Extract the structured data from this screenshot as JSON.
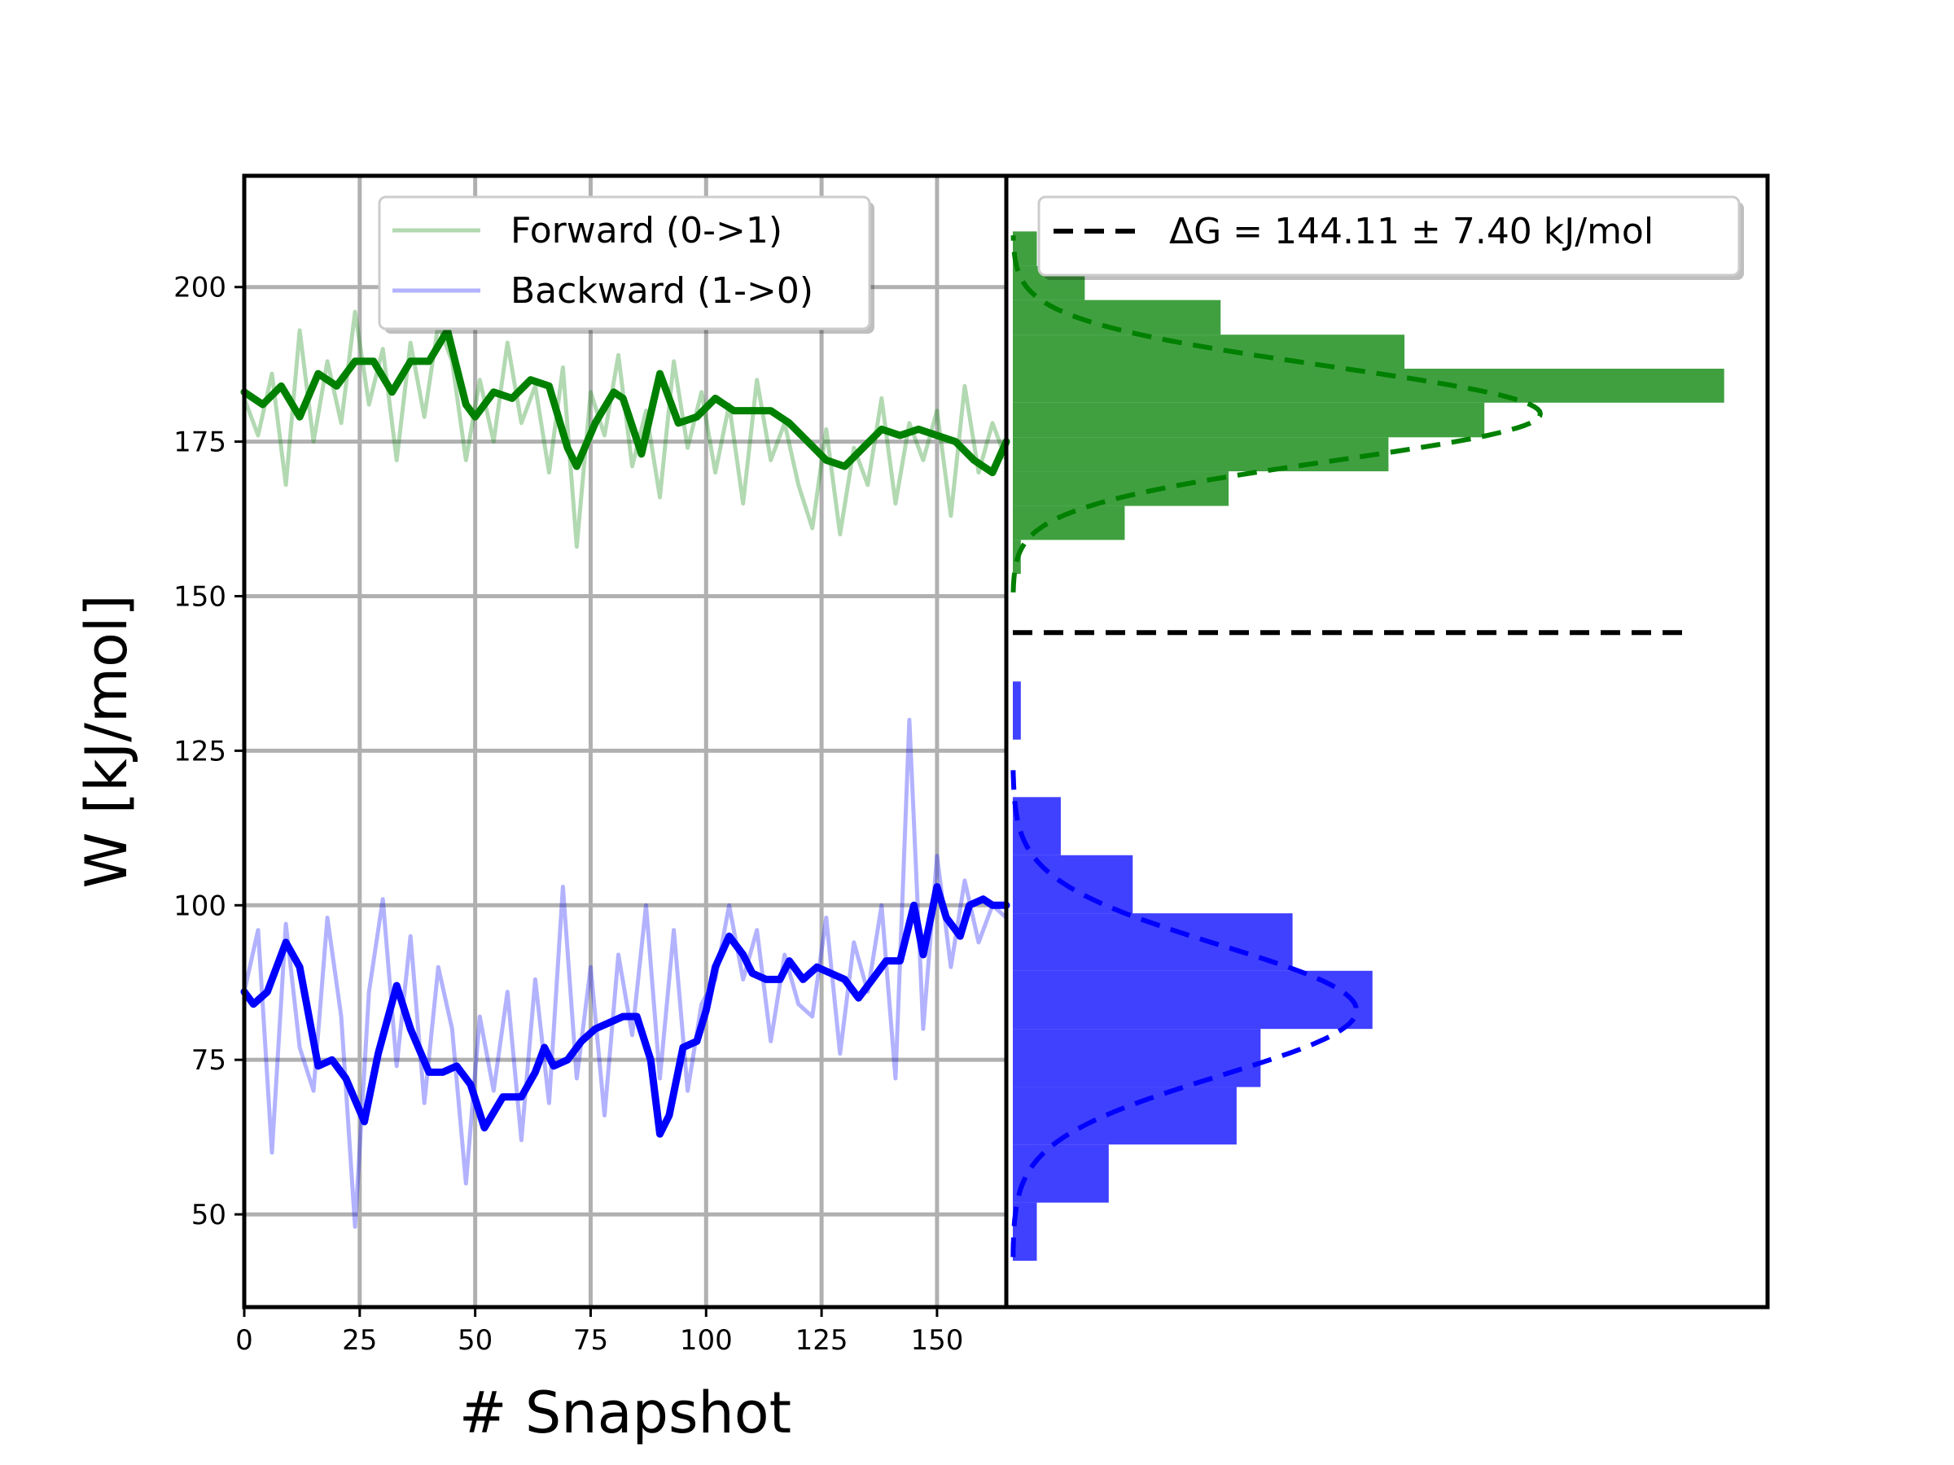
{
  "figure": {
    "background": "#ffffff"
  },
  "chart_data": [
    {
      "type": "line",
      "panel": "left",
      "xlabel": "# Snapshot",
      "ylabel": "W [kJ/mol]",
      "xlim": [
        0,
        165
      ],
      "ylim": [
        35,
        218
      ],
      "xticks": [
        0,
        25,
        50,
        75,
        100,
        125,
        150
      ],
      "yticks": [
        50,
        75,
        100,
        125,
        150,
        175,
        200
      ],
      "grid": true,
      "legend": {
        "placement": "top-center",
        "entries": [
          "Forward (0->1)",
          "Backward (1->0)"
        ]
      },
      "series": [
        {
          "name": "Forward (0->1)",
          "role": "raw",
          "color": "#008000",
          "opacity": 0.3,
          "x": [
            0,
            3,
            6,
            9,
            12,
            15,
            18,
            21,
            24,
            27,
            30,
            33,
            36,
            39,
            42,
            45,
            48,
            51,
            54,
            57,
            60,
            63,
            66,
            69,
            72,
            75,
            78,
            81,
            84,
            87,
            90,
            93,
            96,
            99,
            102,
            105,
            108,
            111,
            114,
            117,
            120,
            123,
            126,
            129,
            132,
            135,
            138,
            141,
            144,
            147,
            150,
            153,
            156,
            159,
            162,
            165
          ],
          "y": [
            182,
            176,
            186,
            168,
            193,
            175,
            188,
            178,
            196,
            181,
            190,
            172,
            191,
            179,
            194,
            188,
            172,
            185,
            175,
            191,
            178,
            184,
            170,
            187,
            158,
            183,
            176,
            189,
            171,
            180,
            166,
            188,
            174,
            183,
            170,
            181,
            165,
            185,
            172,
            178,
            168,
            161,
            177,
            160,
            174,
            168,
            182,
            165,
            178,
            172,
            180,
            163,
            184,
            170,
            178,
            172
          ]
        },
        {
          "name": "Forward (0->1)",
          "role": "smoothed",
          "color": "#008000",
          "x": [
            0,
            4,
            8,
            12,
            16,
            20,
            24,
            28,
            32,
            36,
            40,
            44,
            46,
            48,
            50,
            54,
            58,
            62,
            66,
            70,
            72,
            76,
            80,
            82,
            86,
            90,
            94,
            98,
            102,
            106,
            110,
            114,
            118,
            122,
            126,
            130,
            134,
            138,
            142,
            146,
            150,
            154,
            158,
            162,
            165
          ],
          "y": [
            183,
            181,
            184,
            179,
            186,
            184,
            188,
            188,
            183,
            188,
            188,
            193,
            187,
            181,
            179,
            183,
            182,
            185,
            184,
            174,
            171,
            178,
            183,
            182,
            173,
            186,
            178,
            179,
            182,
            180,
            180,
            180,
            178,
            175,
            172,
            171,
            174,
            177,
            176,
            177,
            176,
            175,
            172,
            170,
            175
          ]
        },
        {
          "name": "Backward (1->0)",
          "role": "raw",
          "color": "#0000ff",
          "opacity": 0.3,
          "x": [
            0,
            3,
            6,
            9,
            12,
            15,
            18,
            21,
            24,
            27,
            30,
            33,
            36,
            39,
            42,
            45,
            48,
            51,
            54,
            57,
            60,
            63,
            66,
            69,
            72,
            75,
            78,
            81,
            84,
            87,
            90,
            93,
            96,
            99,
            102,
            105,
            108,
            111,
            114,
            117,
            120,
            123,
            126,
            129,
            132,
            135,
            138,
            141,
            144,
            147,
            150,
            153,
            156,
            159,
            162,
            165
          ],
          "y": [
            86,
            96,
            60,
            97,
            77,
            70,
            98,
            82,
            48,
            86,
            101,
            74,
            95,
            68,
            90,
            80,
            55,
            82,
            70,
            86,
            62,
            88,
            68,
            103,
            72,
            90,
            66,
            92,
            79,
            100,
            72,
            96,
            70,
            84,
            88,
            100,
            88,
            96,
            78,
            92,
            84,
            82,
            98,
            76,
            94,
            86,
            100,
            72,
            130,
            80,
            108,
            90,
            104,
            94,
            100,
            98
          ]
        },
        {
          "name": "Backward (1->0)",
          "role": "smoothed",
          "color": "#0000ff",
          "x": [
            0,
            2,
            5,
            9,
            12,
            16,
            19,
            22,
            26,
            29,
            33,
            36,
            40,
            43,
            46,
            49,
            52,
            56,
            60,
            63,
            65,
            67,
            70,
            73,
            76,
            79,
            82,
            85,
            88,
            90,
            92,
            95,
            98,
            100,
            102,
            105,
            108,
            110,
            113,
            116,
            118,
            121,
            124,
            127,
            130,
            133,
            136,
            139,
            142,
            145,
            147,
            150,
            152,
            155,
            157,
            160,
            162,
            165
          ],
          "y": [
            86,
            84,
            86,
            94,
            90,
            74,
            75,
            72,
            65,
            76,
            87,
            80,
            73,
            73,
            74,
            71,
            64,
            69,
            69,
            73,
            77,
            74,
            75,
            78,
            80,
            81,
            82,
            82,
            75,
            63,
            66,
            77,
            78,
            83,
            90,
            95,
            92,
            89,
            88,
            88,
            91,
            88,
            90,
            89,
            88,
            85,
            88,
            91,
            91,
            100,
            92,
            103,
            98,
            95,
            100,
            101,
            100,
            100
          ]
        }
      ]
    },
    {
      "type": "histogram",
      "panel": "right",
      "orientation": "horizontal",
      "shares_y_with": "left",
      "ylim": [
        35,
        218
      ],
      "legend": {
        "placement": "top-right",
        "entries": [
          "ΔG = 144.11 ± 7.40 kJ/mol"
        ]
      },
      "delta_g": {
        "value": 144.11,
        "error": 7.4,
        "unit": "kJ/mol",
        "label": "ΔG = 144.11 ± 7.40 kJ/mol",
        "color": "#000000"
      },
      "series": [
        {
          "name": "Forward (0->1)",
          "color": "#008000",
          "opacity": 0.75,
          "bin_edges": [
            153.6,
            159.1,
            164.6,
            170.2,
            175.7,
            181.3,
            186.8,
            192.3,
            197.9,
            203.4,
            209.0
          ],
          "counts": [
            1,
            14,
            27,
            47,
            59,
            89,
            49,
            26,
            9,
            3
          ],
          "fit": {
            "mean": 179.5,
            "sd": 7.6,
            "peak": 66
          }
        },
        {
          "name": "Backward (1->0)",
          "color": "#0000ff",
          "opacity": 0.75,
          "bin_edges": [
            42.5,
            51.9,
            61.3,
            70.6,
            80.0,
            89.4,
            98.7,
            108.1,
            117.5,
            126.8,
            136.2
          ],
          "counts": [
            3,
            12,
            28,
            31,
            45,
            35,
            15,
            6,
            0,
            1
          ],
          "fit": {
            "mean": 83.0,
            "sd": 10.5,
            "peak": 43
          }
        }
      ]
    }
  ]
}
